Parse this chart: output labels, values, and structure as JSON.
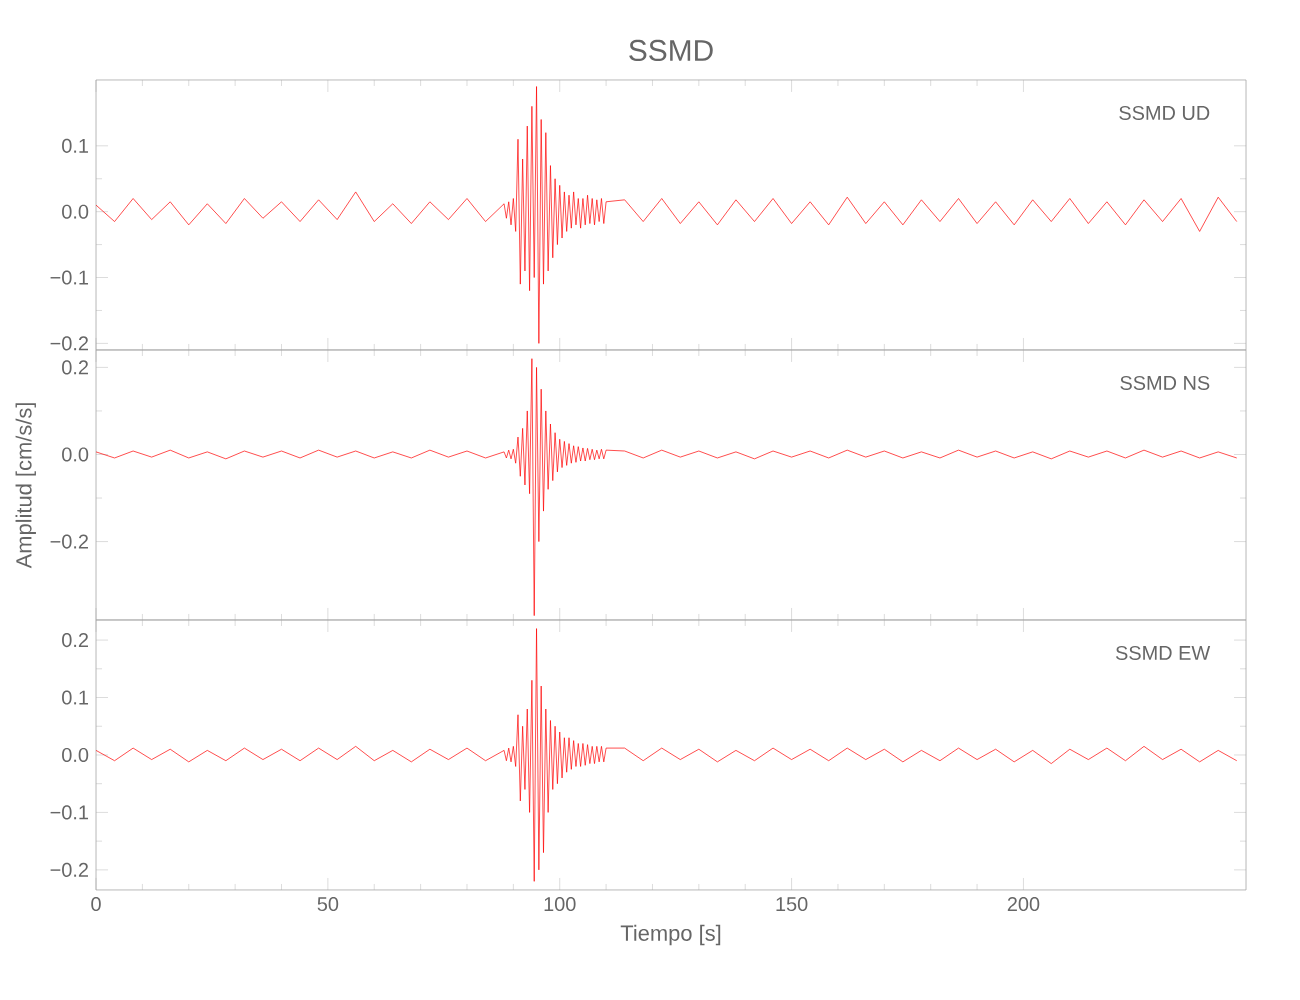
{
  "chart_data": [
    {
      "type": "line",
      "title": "SSMD",
      "annotations": [
        "SSMD   UD"
      ],
      "color": "#ff0000",
      "tick_labels": "y",
      "xlim": [
        0,
        248
      ],
      "xticks": [
        0,
        50,
        100,
        150,
        200
      ],
      "ylim": [
        -0.21,
        0.2
      ],
      "yticks": [
        {
          "value": -0.2,
          "label": "−0.2"
        },
        {
          "value": -0.1,
          "label": "−0.1"
        },
        {
          "value": 0,
          "label": "0.0"
        },
        {
          "value": 0.1,
          "label": "0.1"
        }
      ],
      "x": [
        0,
        4,
        8,
        12,
        16,
        20,
        24,
        28,
        32,
        36,
        40,
        44,
        48,
        52,
        56,
        60,
        64,
        68,
        72,
        76,
        80,
        84,
        88,
        88.5,
        89,
        89.5,
        90,
        90.5,
        91,
        91.5,
        92,
        92.5,
        93,
        93.5,
        94,
        94.5,
        95,
        95.5,
        96,
        96.5,
        97,
        97.5,
        98,
        98.5,
        99,
        99.5,
        100,
        100.5,
        101,
        101.5,
        102,
        102.5,
        103,
        103.5,
        104,
        104.5,
        105,
        105.5,
        106,
        106.5,
        107,
        107.5,
        108,
        108.5,
        109,
        109.5,
        110,
        114,
        118,
        122,
        126,
        130,
        134,
        138,
        142,
        146,
        150,
        154,
        158,
        162,
        166,
        170,
        174,
        178,
        182,
        186,
        190,
        194,
        198,
        202,
        206,
        210,
        214,
        218,
        222,
        226,
        230,
        234,
        238,
        242,
        246
      ],
      "values": [
        0.01,
        -0.015,
        0.02,
        -0.012,
        0.015,
        -0.02,
        0.012,
        -0.018,
        0.02,
        -0.01,
        0.015,
        -0.015,
        0.018,
        -0.012,
        0.03,
        -0.015,
        0.012,
        -0.018,
        0.015,
        -0.012,
        0.02,
        -0.015,
        0.012,
        -0.01,
        0.015,
        -0.02,
        0.02,
        -0.03,
        0.11,
        -0.11,
        0.08,
        -0.09,
        0.13,
        -0.12,
        0.16,
        -0.1,
        0.19,
        -0.2,
        0.14,
        -0.11,
        0.12,
        -0.09,
        0.07,
        -0.07,
        0.05,
        -0.05,
        0.04,
        -0.04,
        0.03,
        -0.03,
        0.025,
        -0.025,
        0.03,
        -0.02,
        0.02,
        -0.025,
        0.02,
        -0.02,
        0.025,
        -0.018,
        0.02,
        -0.02,
        0.018,
        -0.015,
        0.02,
        -0.018,
        0.015,
        0.018,
        -0.015,
        0.02,
        -0.018,
        0.015,
        -0.02,
        0.018,
        -0.015,
        0.02,
        -0.018,
        0.015,
        -0.02,
        0.022,
        -0.018,
        0.015,
        -0.02,
        0.018,
        -0.015,
        0.02,
        -0.018,
        0.015,
        -0.02,
        0.018,
        -0.015,
        0.02,
        -0.018,
        0.015,
        -0.02,
        0.018,
        -0.015,
        0.02,
        -0.03,
        0.022,
        -0.015
      ]
    },
    {
      "type": "line",
      "ylabel": "Amplitud  [cm/s/s]",
      "annotations": [
        "SSMD   NS"
      ],
      "color": "#ff0000",
      "tick_labels": "y",
      "xlim": [
        0,
        248
      ],
      "xticks": [
        0,
        50,
        100,
        150,
        200
      ],
      "ylim": [
        -0.38,
        0.24
      ],
      "yticks": [
        {
          "value": -0.2,
          "label": "−0.2"
        },
        {
          "value": 0,
          "label": "0.0"
        },
        {
          "value": 0.2,
          "label": "0.2"
        }
      ],
      "x": [
        0,
        4,
        8,
        12,
        16,
        20,
        24,
        28,
        32,
        36,
        40,
        44,
        48,
        52,
        56,
        60,
        64,
        68,
        72,
        76,
        80,
        84,
        88,
        88.5,
        89,
        89.5,
        90,
        90.5,
        91,
        91.5,
        92,
        92.5,
        93,
        93.5,
        94,
        94.5,
        95,
        95.5,
        96,
        96.5,
        97,
        97.5,
        98,
        98.5,
        99,
        99.5,
        100,
        100.5,
        101,
        101.5,
        102,
        102.5,
        103,
        103.5,
        104,
        104.5,
        105,
        105.5,
        106,
        106.5,
        107,
        107.5,
        108,
        108.5,
        109,
        109.5,
        110,
        114,
        118,
        122,
        126,
        130,
        134,
        138,
        142,
        146,
        150,
        154,
        158,
        162,
        166,
        170,
        174,
        178,
        182,
        186,
        190,
        194,
        198,
        202,
        206,
        210,
        214,
        218,
        222,
        226,
        230,
        234,
        238,
        242,
        246
      ],
      "values": [
        0.006,
        -0.008,
        0.008,
        -0.006,
        0.01,
        -0.008,
        0.006,
        -0.01,
        0.008,
        -0.006,
        0.008,
        -0.008,
        0.01,
        -0.006,
        0.008,
        -0.008,
        0.006,
        -0.008,
        0.01,
        -0.006,
        0.008,
        -0.008,
        0.006,
        -0.008,
        0.01,
        -0.01,
        0.012,
        -0.02,
        0.04,
        -0.05,
        0.06,
        -0.07,
        0.1,
        -0.09,
        0.22,
        -0.37,
        0.2,
        -0.2,
        0.15,
        -0.13,
        0.1,
        -0.08,
        0.07,
        -0.06,
        0.05,
        -0.04,
        0.035,
        -0.03,
        0.03,
        -0.025,
        0.025,
        -0.02,
        0.02,
        -0.018,
        0.018,
        -0.015,
        0.015,
        -0.015,
        0.014,
        -0.012,
        0.012,
        -0.012,
        0.01,
        -0.01,
        0.012,
        -0.01,
        0.01,
        0.008,
        -0.008,
        0.01,
        -0.006,
        0.008,
        -0.008,
        0.006,
        -0.01,
        0.008,
        -0.006,
        0.008,
        -0.008,
        0.01,
        -0.006,
        0.008,
        -0.008,
        0.006,
        -0.008,
        0.01,
        -0.006,
        0.008,
        -0.008,
        0.006,
        -0.01,
        0.008,
        -0.006,
        0.008,
        -0.008,
        0.01,
        -0.006,
        0.008,
        -0.008,
        0.006,
        -0.008
      ]
    },
    {
      "type": "line",
      "xlabel": "Tiempo  [s]",
      "annotations": [
        "SSMD   EW"
      ],
      "color": "#ff0000",
      "xlim": [
        0,
        248
      ],
      "xticks": [
        0,
        50,
        100,
        150,
        200
      ],
      "ylim": [
        -0.235,
        0.235
      ],
      "yticks": [
        {
          "value": -0.2,
          "label": "−0.2"
        },
        {
          "value": -0.1,
          "label": "−0.1"
        },
        {
          "value": 0,
          "label": "0.0"
        },
        {
          "value": 0.1,
          "label": "0.1"
        },
        {
          "value": 0.2,
          "label": "0.2"
        }
      ],
      "x": [
        0,
        4,
        8,
        12,
        16,
        20,
        24,
        28,
        32,
        36,
        40,
        44,
        48,
        52,
        56,
        60,
        64,
        68,
        72,
        76,
        80,
        84,
        88,
        88.5,
        89,
        89.5,
        90,
        90.5,
        91,
        91.5,
        92,
        92.5,
        93,
        93.5,
        94,
        94.5,
        95,
        95.5,
        96,
        96.5,
        97,
        97.5,
        98,
        98.5,
        99,
        99.5,
        100,
        100.5,
        101,
        101.5,
        102,
        102.5,
        103,
        103.5,
        104,
        104.5,
        105,
        105.5,
        106,
        106.5,
        107,
        107.5,
        108,
        108.5,
        109,
        109.5,
        110,
        114,
        118,
        122,
        126,
        130,
        134,
        138,
        142,
        146,
        150,
        154,
        158,
        162,
        166,
        170,
        174,
        178,
        182,
        186,
        190,
        194,
        198,
        202,
        206,
        210,
        214,
        218,
        222,
        226,
        230,
        234,
        238,
        242,
        246
      ],
      "values": [
        0.008,
        -0.01,
        0.012,
        -0.008,
        0.01,
        -0.012,
        0.008,
        -0.01,
        0.012,
        -0.008,
        0.01,
        -0.01,
        0.012,
        -0.008,
        0.015,
        -0.01,
        0.008,
        -0.012,
        0.01,
        -0.008,
        0.012,
        -0.01,
        0.008,
        -0.01,
        0.012,
        -0.012,
        0.015,
        -0.02,
        0.07,
        -0.08,
        0.05,
        -0.06,
        0.08,
        -0.1,
        0.13,
        -0.22,
        0.22,
        -0.2,
        0.12,
        -0.17,
        0.08,
        -0.1,
        0.06,
        -0.06,
        0.05,
        -0.05,
        0.04,
        -0.04,
        0.03,
        -0.03,
        0.03,
        -0.025,
        0.025,
        -0.02,
        0.02,
        -0.02,
        0.02,
        -0.018,
        0.018,
        -0.015,
        0.015,
        -0.015,
        0.015,
        -0.012,
        0.015,
        -0.012,
        0.012,
        0.012,
        -0.01,
        0.012,
        -0.008,
        0.01,
        -0.012,
        0.008,
        -0.01,
        0.012,
        -0.008,
        0.01,
        -0.01,
        0.012,
        -0.008,
        0.01,
        -0.012,
        0.008,
        -0.01,
        0.012,
        -0.008,
        0.01,
        -0.012,
        0.008,
        -0.015,
        0.01,
        -0.008,
        0.012,
        -0.01,
        0.015,
        -0.008,
        0.01,
        -0.012,
        0.008,
        -0.01
      ]
    }
  ]
}
